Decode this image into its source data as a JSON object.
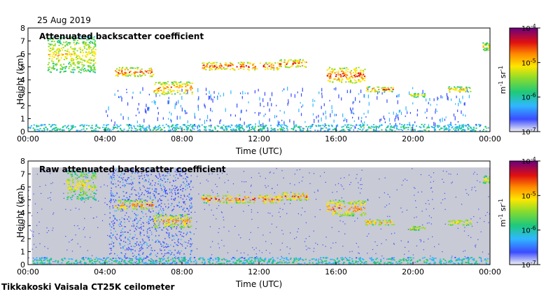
{
  "figure": {
    "date": "25 Aug 2019",
    "footer": "Tikkakoski Vaisala CT25K ceilometer"
  },
  "chart_data": [
    {
      "type": "heatmap",
      "title": "Attenuated backscatter coefficient",
      "xlabel": "Time (UTC)",
      "ylabel": "Height (km)",
      "xlim": [
        0,
        24
      ],
      "ylim": [
        0,
        8
      ],
      "x_ticks": [
        0,
        4,
        8,
        12,
        16,
        20,
        24
      ],
      "x_tick_labels": [
        "00:00",
        "04:00",
        "08:00",
        "12:00",
        "16:00",
        "20:00",
        "00:00"
      ],
      "y_ticks": [
        0,
        1,
        2,
        3,
        4,
        5,
        6,
        7,
        8
      ],
      "y_tick_labels": [
        "0",
        "1",
        "2",
        "3",
        "4",
        "5",
        "6",
        "7",
        "8"
      ],
      "colorbar": {
        "scale": "log",
        "range": [
          1e-07,
          0.0001
        ],
        "tick_labels": [
          "10^-7",
          "10^-6",
          "10^-5",
          "10^-4"
        ],
        "unit": "m^-1 sr^-1"
      },
      "layers": [
        {
          "t0": 1.0,
          "t1": 3.5,
          "h0": 4.6,
          "h1": 7.4,
          "intensity": 0.62,
          "desc": "dense cloud 01-03:30"
        },
        {
          "t0": 4.5,
          "t1": 6.5,
          "h0": 4.3,
          "h1": 5.0,
          "intensity": 0.85
        },
        {
          "t0": 6.5,
          "t1": 8.5,
          "h0": 2.9,
          "h1": 3.9,
          "intensity": 0.8
        },
        {
          "t0": 9.0,
          "t1": 13.0,
          "h0": 4.8,
          "h1": 5.4,
          "intensity": 0.9
        },
        {
          "t0": 13.0,
          "t1": 14.5,
          "h0": 5.0,
          "h1": 5.6,
          "intensity": 0.85
        },
        {
          "t0": 15.5,
          "t1": 17.5,
          "h0": 3.8,
          "h1": 5.0,
          "intensity": 0.85
        },
        {
          "t0": 17.5,
          "t1": 19.0,
          "h0": 3.1,
          "h1": 3.5,
          "intensity": 0.8
        },
        {
          "t0": 19.8,
          "t1": 20.6,
          "h0": 2.7,
          "h1": 3.0,
          "intensity": 0.6
        },
        {
          "t0": 21.8,
          "t1": 23.0,
          "h0": 3.1,
          "h1": 3.5,
          "intensity": 0.7
        },
        {
          "t0": 23.6,
          "t1": 24.0,
          "h0": 6.3,
          "h1": 6.9,
          "intensity": 0.65
        },
        {
          "t0": 0.0,
          "t1": 24.0,
          "h0": 0.0,
          "h1": 0.6,
          "intensity": 0.35,
          "desc": "boundary layer"
        }
      ]
    },
    {
      "type": "heatmap",
      "title": "Raw attenuated backscatter coefficient",
      "xlabel": "Time (UTC)",
      "ylabel": "Height (km)",
      "xlim": [
        0,
        24
      ],
      "ylim": [
        0,
        8
      ],
      "x_ticks": [
        0,
        4,
        8,
        12,
        16,
        20,
        24
      ],
      "x_tick_labels": [
        "00:00",
        "04:00",
        "08:00",
        "12:00",
        "16:00",
        "20:00",
        "00:00"
      ],
      "y_ticks": [
        0,
        1,
        2,
        3,
        4,
        5,
        6,
        7,
        8
      ],
      "y_tick_labels": [
        "0",
        "1",
        "2",
        "3",
        "4",
        "5",
        "6",
        "7",
        "8"
      ],
      "colorbar": {
        "scale": "log",
        "range": [
          1e-07,
          0.0001
        ],
        "tick_labels": [
          "10^-7",
          "10^-6",
          "10^-5",
          "10^-4"
        ],
        "unit": "m^-1 sr^-1"
      },
      "noise_ceiling_km": 7.5,
      "layers": [
        {
          "t0": 2.0,
          "t1": 3.5,
          "h0": 5.0,
          "h1": 7.3,
          "intensity": 0.6
        },
        {
          "t0": 4.5,
          "t1": 6.5,
          "h0": 4.3,
          "h1": 5.0,
          "intensity": 0.8
        },
        {
          "t0": 6.5,
          "t1": 8.5,
          "h0": 2.9,
          "h1": 3.9,
          "intensity": 0.75
        },
        {
          "t0": 9.0,
          "t1": 13.0,
          "h0": 4.8,
          "h1": 5.4,
          "intensity": 0.85
        },
        {
          "t0": 13.0,
          "t1": 14.5,
          "h0": 5.0,
          "h1": 5.6,
          "intensity": 0.8
        },
        {
          "t0": 15.5,
          "t1": 17.5,
          "h0": 3.8,
          "h1": 5.0,
          "intensity": 0.8
        },
        {
          "t0": 17.5,
          "t1": 19.0,
          "h0": 3.1,
          "h1": 3.5,
          "intensity": 0.75
        },
        {
          "t0": 19.8,
          "t1": 20.6,
          "h0": 2.7,
          "h1": 3.0,
          "intensity": 0.6
        },
        {
          "t0": 21.8,
          "t1": 23.0,
          "h0": 3.1,
          "h1": 3.5,
          "intensity": 0.65
        },
        {
          "t0": 23.6,
          "t1": 24.0,
          "h0": 6.3,
          "h1": 6.9,
          "intensity": 0.6
        },
        {
          "t0": 0.0,
          "t1": 24.0,
          "h0": 0.0,
          "h1": 0.6,
          "intensity": 0.35
        }
      ]
    }
  ]
}
